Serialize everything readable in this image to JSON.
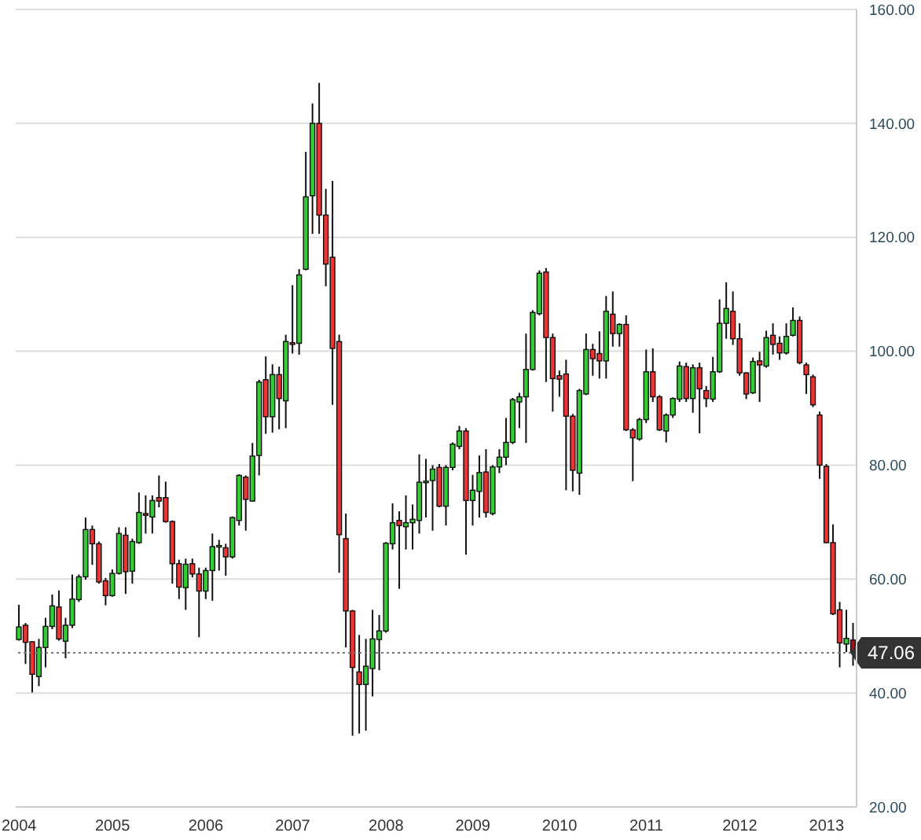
{
  "chart_data": {
    "type": "candlestick",
    "categories": [
      "2004",
      null,
      null,
      null,
      null,
      null,
      null,
      null,
      null,
      null,
      null,
      null,
      null,
      null,
      "2005",
      null,
      null,
      null,
      null,
      null,
      null,
      null,
      null,
      null,
      null,
      null,
      null,
      null,
      "2006",
      null,
      null,
      null,
      null,
      null,
      null,
      null,
      null,
      null,
      null,
      null,
      null,
      "2007",
      null,
      null,
      null,
      null,
      null,
      null,
      null,
      null,
      null,
      null,
      null,
      null,
      null,
      "2008",
      null,
      null,
      null,
      null,
      null,
      null,
      null,
      null,
      null,
      null,
      null,
      null,
      "2009",
      null,
      null,
      null,
      null,
      null,
      null,
      null,
      null,
      null,
      null,
      null,
      null,
      "2010",
      null,
      null,
      null,
      null,
      null,
      null,
      null,
      null,
      null,
      null,
      null,
      null,
      "2011",
      null,
      null,
      null,
      null,
      null,
      null,
      null,
      null,
      null,
      null,
      null,
      null,
      null,
      "2012",
      null,
      null,
      null,
      null,
      null,
      null,
      null,
      null,
      null,
      null,
      null,
      null,
      "2013",
      null,
      null,
      null,
      null
    ],
    "ohlc": [
      [
        49.4,
        55.5,
        49.2,
        51.6
      ],
      [
        51.9,
        52.3,
        45.1,
        48.9
      ],
      [
        49.0,
        49.1,
        40.1,
        43.3
      ],
      [
        42.9,
        49.5,
        41.2,
        48.0
      ],
      [
        48.0,
        53.2,
        44.5,
        51.7
      ],
      [
        51.7,
        57.3,
        51.2,
        55.3
      ],
      [
        55.1,
        58.0,
        49.2,
        49.5
      ],
      [
        49.1,
        53.2,
        46.1,
        51.9
      ],
      [
        51.9,
        60.8,
        51.4,
        56.5
      ],
      [
        56.4,
        60.8,
        56.0,
        60.4
      ],
      [
        60.4,
        70.8,
        59.9,
        68.7
      ],
      [
        68.7,
        69.4,
        62.5,
        66.2
      ],
      [
        66.2,
        66.6,
        59.2,
        59.5
      ],
      [
        59.7,
        60.2,
        55.4,
        57.1
      ],
      [
        57.1,
        61.7,
        56.9,
        61.0
      ],
      [
        61.0,
        69.1,
        60.8,
        68.0
      ],
      [
        67.7,
        69.1,
        57.4,
        61.3
      ],
      [
        61.4,
        67.1,
        59.2,
        66.6
      ],
      [
        66.4,
        75.2,
        66.2,
        71.7
      ],
      [
        71.5,
        74.7,
        68.0,
        71.2
      ],
      [
        70.9,
        74.7,
        68.0,
        73.8
      ],
      [
        74.3,
        78.2,
        72.6,
        73.7
      ],
      [
        74.3,
        77.1,
        69.9,
        70.1
      ],
      [
        70.1,
        70.3,
        59.2,
        62.7
      ],
      [
        62.7,
        63.4,
        56.5,
        58.6
      ],
      [
        58.5,
        63.6,
        54.6,
        62.6
      ],
      [
        62.7,
        63.6,
        60.3,
        60.9
      ],
      [
        60.9,
        62.0,
        49.8,
        57.9
      ],
      [
        57.9,
        62.0,
        56.5,
        61.5
      ],
      [
        61.5,
        68.0,
        56.2,
        65.7
      ],
      [
        65.7,
        66.9,
        61.5,
        65.9
      ],
      [
        65.5,
        66.2,
        60.6,
        63.9
      ],
      [
        63.9,
        71.0,
        63.6,
        70.8
      ],
      [
        70.3,
        78.4,
        69.4,
        78.2
      ],
      [
        77.9,
        78.2,
        68.5,
        74.0
      ],
      [
        73.7,
        83.9,
        73.6,
        81.6
      ],
      [
        81.7,
        95.0,
        78.2,
        94.6
      ],
      [
        95.0,
        99.1,
        85.5,
        88.5
      ],
      [
        88.5,
        97.7,
        85.7,
        95.9
      ],
      [
        95.9,
        97.3,
        86.3,
        91.7
      ],
      [
        91.3,
        102.9,
        86.5,
        101.7
      ],
      [
        101.5,
        111.6,
        99.6,
        101.2
      ],
      [
        101.4,
        114.4,
        99.4,
        113.4
      ],
      [
        114.4,
        135.0,
        114.2,
        127.1
      ],
      [
        127.3,
        143.5,
        120.6,
        140.0
      ],
      [
        140.0,
        147.1,
        120.6,
        123.9
      ],
      [
        123.9,
        128.5,
        111.4,
        115.3
      ],
      [
        116.5,
        129.9,
        90.6,
        100.5
      ],
      [
        101.7,
        102.9,
        61.1,
        67.8
      ],
      [
        67.1,
        71.5,
        48.0,
        54.4
      ],
      [
        54.4,
        54.6,
        32.5,
        44.5
      ],
      [
        43.7,
        50.2,
        32.9,
        41.5
      ],
      [
        41.5,
        49.5,
        33.4,
        44.7
      ],
      [
        44.3,
        54.6,
        39.4,
        49.5
      ],
      [
        49.4,
        53.7,
        44.0,
        50.9
      ],
      [
        50.9,
        66.5,
        50.6,
        66.3
      ],
      [
        66.2,
        73.3,
        65.2,
        69.9
      ],
      [
        70.3,
        71.9,
        58.3,
        69.4
      ],
      [
        69.2,
        74.7,
        65.2,
        69.9
      ],
      [
        69.9,
        73.1,
        65.2,
        70.5
      ],
      [
        70.3,
        81.9,
        68.0,
        77.0
      ],
      [
        77.0,
        81.1,
        70.8,
        77.2
      ],
      [
        77.3,
        80.0,
        68.5,
        79.3
      ],
      [
        79.6,
        80.2,
        72.6,
        72.8
      ],
      [
        72.8,
        80.0,
        69.4,
        79.6
      ],
      [
        79.6,
        84.0,
        79.1,
        83.7
      ],
      [
        83.3,
        86.9,
        82.8,
        86.0
      ],
      [
        86.0,
        86.5,
        64.3,
        73.8
      ],
      [
        73.8,
        78.3,
        69.4,
        75.6
      ],
      [
        75.4,
        81.7,
        70.8,
        78.7
      ],
      [
        78.8,
        82.8,
        70.8,
        71.7
      ],
      [
        71.5,
        80.0,
        71.2,
        79.7
      ],
      [
        79.7,
        82.8,
        78.6,
        81.4
      ],
      [
        81.4,
        88.3,
        80.0,
        84.0
      ],
      [
        84.0,
        91.8,
        83.7,
        91.5
      ],
      [
        91.1,
        92.7,
        86.5,
        92.0
      ],
      [
        92.0,
        103.1,
        83.9,
        96.8
      ],
      [
        96.8,
        107.2,
        96.6,
        106.8
      ],
      [
        106.6,
        114.2,
        106.3,
        113.7
      ],
      [
        113.9,
        114.6,
        94.6,
        102.4
      ],
      [
        102.4,
        103.1,
        89.4,
        95.2
      ],
      [
        95.7,
        96.6,
        92.0,
        95.1
      ],
      [
        96.0,
        98.5,
        75.6,
        88.6
      ],
      [
        88.6,
        89.0,
        75.4,
        79.1
      ],
      [
        78.6,
        93.4,
        74.8,
        93.1
      ],
      [
        92.5,
        103.1,
        92.3,
        100.3
      ],
      [
        100.3,
        101.3,
        95.7,
        98.7
      ],
      [
        99.6,
        103.5,
        95.2,
        98.3
      ],
      [
        98.3,
        109.7,
        95.2,
        107.0
      ],
      [
        106.5,
        110.5,
        100.8,
        103.1
      ],
      [
        103.1,
        104.9,
        100.8,
        104.7
      ],
      [
        104.7,
        106.3,
        86.0,
        86.2
      ],
      [
        86.2,
        86.5,
        77.2,
        84.8
      ],
      [
        84.6,
        88.3,
        84.3,
        88.0
      ],
      [
        88.0,
        100.3,
        87.4,
        96.4
      ],
      [
        96.4,
        100.5,
        91.1,
        92.0
      ],
      [
        92.0,
        92.3,
        86.0,
        86.2
      ],
      [
        86.0,
        89.1,
        84.0,
        88.8
      ],
      [
        88.8,
        91.9,
        88.3,
        91.7
      ],
      [
        91.6,
        98.2,
        91.1,
        97.4
      ],
      [
        97.3,
        98.0,
        91.1,
        91.7
      ],
      [
        91.7,
        97.7,
        89.2,
        97.1
      ],
      [
        97.1,
        98.0,
        85.6,
        93.4
      ],
      [
        93.1,
        93.9,
        90.2,
        91.7
      ],
      [
        91.6,
        99.0,
        91.1,
        96.4
      ],
      [
        96.4,
        109.1,
        96.2,
        104.9
      ],
      [
        104.9,
        112.1,
        102.2,
        107.5
      ],
      [
        107.0,
        110.5,
        101.1,
        102.2
      ],
      [
        102.2,
        104.9,
        95.7,
        96.2
      ],
      [
        96.2,
        96.3,
        91.6,
        92.5
      ],
      [
        92.7,
        98.9,
        92.5,
        98.2
      ],
      [
        98.3,
        99.9,
        91.1,
        97.6
      ],
      [
        97.4,
        103.6,
        97.1,
        102.4
      ],
      [
        102.8,
        104.9,
        99.4,
        101.2
      ],
      [
        101.4,
        102.6,
        98.5,
        99.7
      ],
      [
        99.7,
        104.9,
        99.4,
        102.6
      ],
      [
        102.8,
        107.7,
        102.6,
        105.4
      ],
      [
        105.4,
        106.1,
        97.7,
        98.0
      ],
      [
        97.6,
        98.0,
        92.5,
        95.9
      ],
      [
        95.5,
        95.9,
        90.2,
        90.6
      ],
      [
        88.8,
        89.4,
        77.6,
        80.0
      ],
      [
        79.8,
        80.2,
        66.3,
        66.4
      ],
      [
        66.4,
        69.6,
        53.7,
        53.9
      ],
      [
        54.6,
        56.0,
        44.5,
        48.8
      ],
      [
        48.6,
        54.6,
        47.2,
        49.6
      ],
      [
        49.3,
        52.3,
        44.8,
        47.06
      ]
    ],
    "colors": [
      "#33cc33",
      "#ee3333",
      "#ee3333",
      "#33cc33",
      "#33cc33",
      "#33cc33",
      "#ee3333",
      "#33cc33",
      "#33cc33",
      "#33cc33",
      "#33cc33",
      "#ee3333",
      "#ee3333",
      "#ee3333",
      "#33cc33",
      "#33cc33",
      "#ee3333",
      "#33cc33",
      "#33cc33",
      "#ee3333",
      "#33cc33",
      "#ee3333",
      "#ee3333",
      "#ee3333",
      "#ee3333",
      "#33cc33",
      "#ee3333",
      "#ee3333",
      "#33cc33",
      "#33cc33",
      "#33cc33",
      "#ee3333",
      "#33cc33",
      "#33cc33",
      "#ee3333",
      "#33cc33",
      "#33cc33",
      "#ee3333",
      "#33cc33",
      "#ee3333",
      "#33cc33",
      "#ee3333",
      "#33cc33",
      "#33cc33",
      "#33cc33",
      "#ee3333",
      "#ee3333",
      "#ee3333",
      "#ee3333",
      "#ee3333",
      "#ee3333",
      "#ee3333",
      "#33cc33",
      "#33cc33",
      "#33cc33",
      "#33cc33",
      "#33cc33",
      "#ee3333",
      "#33cc33",
      "#33cc33",
      "#33cc33",
      "#33cc33",
      "#33cc33",
      "#ee3333",
      "#33cc33",
      "#33cc33",
      "#33cc33",
      "#ee3333",
      "#33cc33",
      "#33cc33",
      "#ee3333",
      "#33cc33",
      "#33cc33",
      "#33cc33",
      "#33cc33",
      "#33cc33",
      "#33cc33",
      "#33cc33",
      "#33cc33",
      "#ee3333",
      "#ee3333",
      "#ee3333",
      "#ee3333",
      "#ee3333",
      "#33cc33",
      "#33cc33",
      "#ee3333",
      "#ee3333",
      "#33cc33",
      "#ee3333",
      "#33cc33",
      "#ee3333",
      "#ee3333",
      "#33cc33",
      "#33cc33",
      "#ee3333",
      "#ee3333",
      "#33cc33",
      "#33cc33",
      "#33cc33",
      "#ee3333",
      "#33cc33",
      "#ee3333",
      "#ee3333",
      "#33cc33",
      "#33cc33",
      "#33cc33",
      "#ee3333",
      "#ee3333",
      "#ee3333",
      "#33cc33",
      "#ee3333",
      "#33cc33",
      "#ee3333",
      "#ee3333",
      "#33cc33",
      "#33cc33",
      "#ee3333",
      "#ee3333",
      "#ee3333",
      "#ee3333",
      "#ee3333",
      "#ee3333",
      "#ee3333",
      "#33cc33",
      "#a31515"
    ],
    "ylim": [
      20,
      160
    ],
    "yticks": [
      {
        "value": 20,
        "label": "20.00"
      },
      {
        "value": 40,
        "label": "40.00"
      },
      {
        "value": 60,
        "label": "60.00"
      },
      {
        "value": 80,
        "label": "80.00"
      },
      {
        "value": 100,
        "label": "100.00"
      },
      {
        "value": 120,
        "label": "120.00"
      },
      {
        "value": 140,
        "label": "140.00"
      },
      {
        "value": 160,
        "label": "160.00"
      }
    ],
    "grid": "y",
    "ref_lines": [
      {
        "axis": "y",
        "value": 47.06,
        "label": "47.06",
        "color": "#777777",
        "line_style": "dotted"
      }
    ]
  }
}
